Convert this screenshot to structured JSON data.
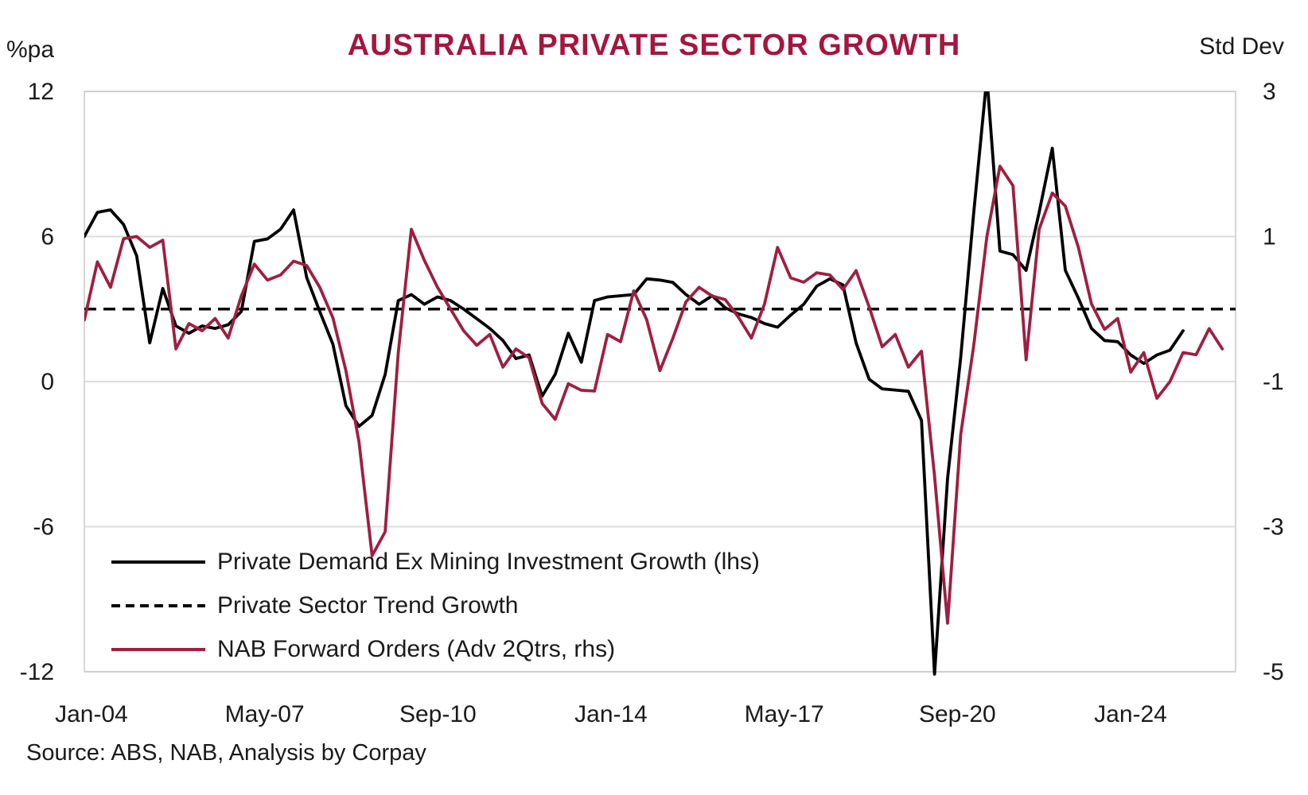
{
  "header": {
    "title": "AUSTRALIA PRIVATE SECTOR GROWTH",
    "left_axis_title": "%pa",
    "right_axis_title": "Std Dev"
  },
  "source_note": "Source: ABS, NAB, Analysis by Corpay",
  "legend": [
    {
      "label": "Private Demand Ex Mining Investment Growth (lhs)",
      "style": "solid",
      "color": "#000000"
    },
    {
      "label": "Private Sector Trend Growth",
      "style": "dashed",
      "color": "#000000"
    },
    {
      "label": "NAB Forward Orders (Adv 2Qtrs, rhs)",
      "style": "solid",
      "color": "#9E1F42"
    }
  ],
  "colors": {
    "title": "#A5163F",
    "nab_line": "#9E1F42",
    "black_line": "#000000",
    "grid": "#DCDCDC",
    "border": "#C9C9C9",
    "text": "#1a1a1a"
  },
  "chart_data": {
    "type": "line",
    "title": "AUSTRALIA PRIVATE SECTOR GROWTH",
    "x_start": "2004Q1",
    "frequency": "quarterly",
    "x_tick_labels": [
      "Jan-04",
      "May-07",
      "Sep-10",
      "Jan-14",
      "May-17",
      "Sep-20",
      "Jan-24"
    ],
    "left_axis": {
      "label": "%pa",
      "ticks": [
        12,
        6,
        0,
        -6,
        -12
      ],
      "range": [
        -12,
        12
      ]
    },
    "right_axis": {
      "label": "Std Dev",
      "ticks": [
        3,
        1,
        -1,
        -3,
        -5
      ],
      "range": [
        -5,
        3
      ]
    },
    "grid": "horizontal-only",
    "legend_position": "inside-bottom-left",
    "series": [
      {
        "name": "Private Demand Ex Mining Investment Growth (lhs)",
        "axis": "left",
        "style": "solid",
        "color": "#000000",
        "values": [
          6.0,
          7.0,
          7.1,
          6.5,
          5.2,
          1.6,
          3.85,
          2.3,
          2.0,
          2.3,
          2.2,
          2.35,
          2.9,
          5.8,
          5.9,
          6.3,
          7.1,
          4.3,
          2.9,
          1.55,
          -1.0,
          -1.85,
          -1.4,
          0.3,
          3.35,
          3.6,
          3.2,
          3.5,
          3.35,
          3.0,
          2.6,
          2.2,
          1.7,
          0.95,
          1.1,
          -0.6,
          0.3,
          2.0,
          0.8,
          3.35,
          3.5,
          3.55,
          3.6,
          4.25,
          4.2,
          4.1,
          3.6,
          3.2,
          3.55,
          3.05,
          2.8,
          2.65,
          2.4,
          2.25,
          2.75,
          3.2,
          3.95,
          4.25,
          4.0,
          1.6,
          0.1,
          -0.3,
          -0.35,
          -0.4,
          -1.6,
          -12.1,
          -4.0,
          1.0,
          7.0,
          12.6,
          5.4,
          5.25,
          4.6,
          7.0,
          9.65,
          4.6,
          3.45,
          2.2,
          1.7,
          1.65,
          1.1,
          0.75,
          1.1,
          1.3,
          2.1
        ]
      },
      {
        "name": "Private Sector Trend Growth",
        "axis": "left",
        "style": "dashed",
        "color": "#000000",
        "constant_value": 3.0
      },
      {
        "name": "NAB Forward Orders (Adv 2Qtrs, rhs)",
        "axis": "right",
        "style": "solid",
        "color": "#9E1F42",
        "values": [
          -0.15,
          0.65,
          0.3,
          0.97,
          1.0,
          0.85,
          0.95,
          -0.55,
          -0.2,
          -0.3,
          -0.13,
          -0.4,
          0.18,
          0.62,
          0.4,
          0.47,
          0.66,
          0.6,
          0.3,
          -0.12,
          -0.85,
          -1.83,
          -3.4,
          -3.07,
          -0.6,
          1.1,
          0.67,
          0.3,
          0.0,
          -0.3,
          -0.5,
          -0.35,
          -0.8,
          -0.55,
          -0.67,
          -1.3,
          -1.52,
          -1.03,
          -1.12,
          -1.13,
          -0.35,
          -0.45,
          0.25,
          -0.15,
          -0.85,
          -0.4,
          0.1,
          0.3,
          0.18,
          0.13,
          -0.11,
          -0.4,
          0.07,
          0.85,
          0.43,
          0.37,
          0.5,
          0.47,
          0.27,
          0.53,
          0.03,
          -0.52,
          -0.35,
          -0.8,
          -0.58,
          -2.3,
          -4.33,
          -1.73,
          -0.5,
          1.0,
          1.97,
          1.7,
          -0.7,
          1.1,
          1.6,
          1.42,
          0.85,
          0.07,
          -0.28,
          -0.13,
          -0.87,
          -0.6,
          -1.23,
          -1.0,
          -0.6,
          -0.63,
          -0.27,
          -0.55
        ]
      }
    ]
  }
}
